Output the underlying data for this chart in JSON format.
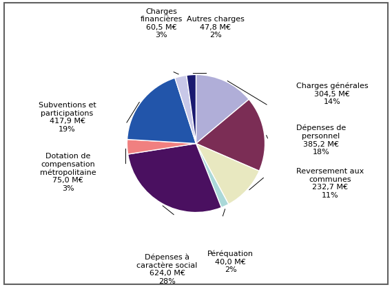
{
  "slices": [
    {
      "label": "Charges générales\n304,5 M€\n14%",
      "value": 304.5,
      "color": "#b0aed8"
    },
    {
      "label": "Dépenses de\npersonnel\n385,2 M€\n18%",
      "value": 385.2,
      "color": "#7b2d55"
    },
    {
      "label": "Reversement aux\ncommunes\n232,7 M€\n11%",
      "value": 232.7,
      "color": "#e8e8c0"
    },
    {
      "label": "Péréquation\n40,0 M€\n2%",
      "value": 40.0,
      "color": "#aad8d8"
    },
    {
      "label": "Dépenses à\ncaractère social\n624,0 M€\n28%",
      "value": 624.0,
      "color": "#4a1060"
    },
    {
      "label": "Dotation de\ncompensation\nmétropolitaine\n75,0 M€\n3%",
      "value": 75.0,
      "color": "#f08080"
    },
    {
      "label": "Subventions et\nparticipations\n417,9 M€\n19%",
      "value": 417.9,
      "color": "#2255aa"
    },
    {
      "label": "Charges\nfinancières\n60,5 M€\n3%",
      "value": 60.5,
      "color": "#c8c8e8"
    },
    {
      "label": "Autres charges\n47,8 M€\n2%",
      "value": 47.8,
      "color": "#1a1a70"
    }
  ],
  "background_color": "#ffffff",
  "border_color": "#808080",
  "font_size": 8.0,
  "startangle": 90,
  "figsize": [
    5.69,
    4.17
  ],
  "dpi": 100
}
